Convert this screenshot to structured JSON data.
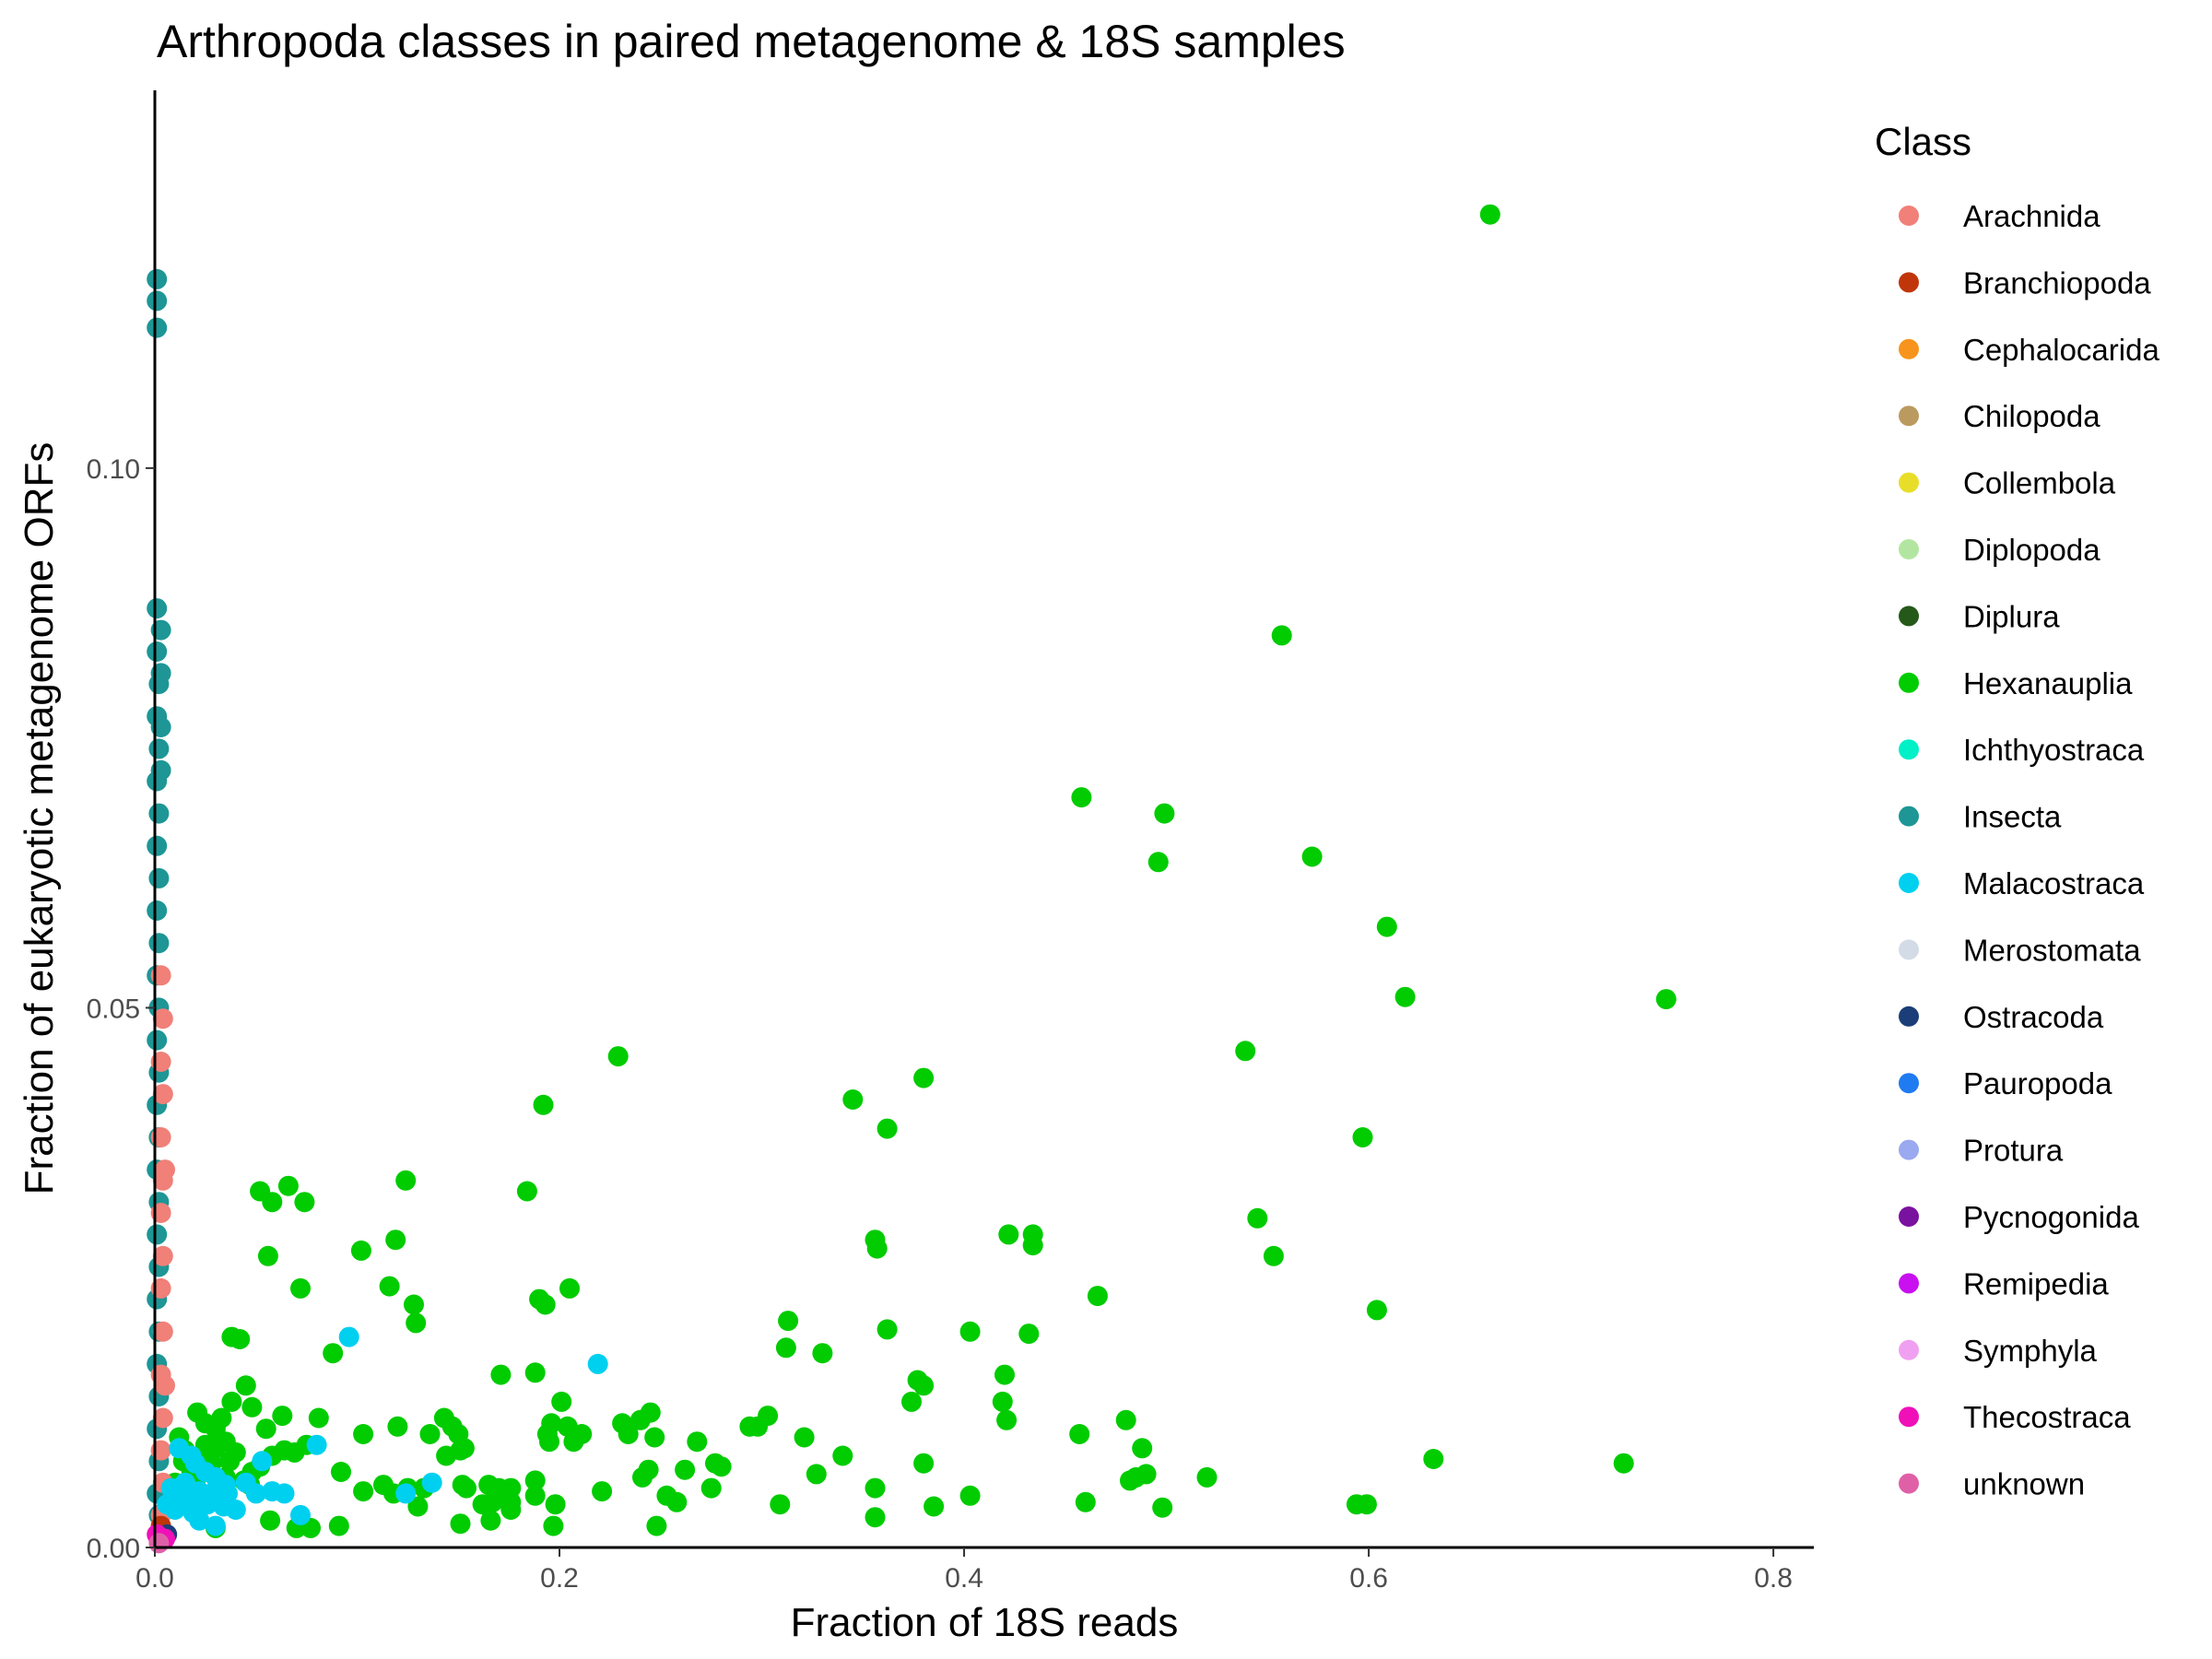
{
  "chart_data": {
    "type": "scatter",
    "title": "Arthropoda classes in paired metagenome & 18S samples",
    "xlabel": "Fraction of 18S reads",
    "ylabel": "Fraction of eukaryotic metagenome ORFs",
    "xlim": [
      0,
      0.82
    ],
    "ylim": [
      0,
      0.135
    ],
    "x_ticks": [
      0,
      0.2,
      0.4,
      0.6,
      0.8
    ],
    "x_tick_labels": [
      "0.0",
      "0.2",
      "0.4",
      "0.6",
      "0.8"
    ],
    "y_ticks": [
      0,
      0.05,
      0.1
    ],
    "y_tick_labels": [
      "0.00",
      "0.05",
      "0.10"
    ],
    "grid": false,
    "legend_placement": "right",
    "legend_title": "Class",
    "series": [
      {
        "name": "Arachnida",
        "color": "#F08078",
        "points": [
          [
            0.003,
            0.053
          ],
          [
            0.004,
            0.049
          ],
          [
            0.003,
            0.045
          ],
          [
            0.004,
            0.042
          ],
          [
            0.003,
            0.038
          ],
          [
            0.004,
            0.034
          ],
          [
            0.003,
            0.031
          ],
          [
            0.004,
            0.027
          ],
          [
            0.003,
            0.024
          ],
          [
            0.004,
            0.02
          ],
          [
            0.003,
            0.016
          ],
          [
            0.004,
            0.012
          ],
          [
            0.003,
            0.009
          ],
          [
            0.004,
            0.006
          ],
          [
            0.003,
            0.003
          ],
          [
            0.005,
            0.015
          ],
          [
            0.005,
            0.035
          ]
        ]
      },
      {
        "name": "Branchiopoda",
        "color": "#C0360A",
        "points": [
          [
            0.002,
            0.001
          ],
          [
            0.003,
            0.002
          ]
        ]
      },
      {
        "name": "Cephalocarida",
        "color": "#F7941D",
        "points": []
      },
      {
        "name": "Chilopoda",
        "color": "#BB9A5F",
        "points": []
      },
      {
        "name": "Collembola",
        "color": "#E8DE2A",
        "points": []
      },
      {
        "name": "Diplopoda",
        "color": "#B2E6A0",
        "points": []
      },
      {
        "name": "Diplura",
        "color": "#25591A",
        "points": []
      },
      {
        "name": "Hexanauplia",
        "color": "#00CC00",
        "points": [
          [
            0.66,
            0.1235
          ],
          [
            0.557,
            0.0845
          ],
          [
            0.458,
            0.0695
          ],
          [
            0.499,
            0.068
          ],
          [
            0.496,
            0.0635
          ],
          [
            0.572,
            0.064
          ],
          [
            0.609,
            0.0575
          ],
          [
            0.618,
            0.051
          ],
          [
            0.747,
            0.0508
          ],
          [
            0.539,
            0.046
          ],
          [
            0.229,
            0.0455
          ],
          [
            0.38,
            0.0435
          ],
          [
            0.345,
            0.0415
          ],
          [
            0.192,
            0.041
          ],
          [
            0.362,
            0.0388
          ],
          [
            0.597,
            0.038
          ],
          [
            0.124,
            0.034
          ],
          [
            0.052,
            0.033
          ],
          [
            0.066,
            0.0335
          ],
          [
            0.184,
            0.033
          ],
          [
            0.058,
            0.032
          ],
          [
            0.074,
            0.032
          ],
          [
            0.545,
            0.0305
          ],
          [
            0.356,
            0.0285
          ],
          [
            0.422,
            0.029
          ],
          [
            0.434,
            0.029
          ],
          [
            0.119,
            0.0285
          ],
          [
            0.357,
            0.0277
          ],
          [
            0.434,
            0.028
          ],
          [
            0.102,
            0.0275
          ],
          [
            0.056,
            0.027
          ],
          [
            0.553,
            0.027
          ],
          [
            0.116,
            0.0242
          ],
          [
            0.072,
            0.024
          ],
          [
            0.205,
            0.024
          ],
          [
            0.466,
            0.0233
          ],
          [
            0.19,
            0.023
          ],
          [
            0.128,
            0.0225
          ],
          [
            0.193,
            0.0225
          ],
          [
            0.604,
            0.022
          ],
          [
            0.313,
            0.021
          ],
          [
            0.129,
            0.0208
          ],
          [
            0.362,
            0.0202
          ],
          [
            0.403,
            0.02
          ],
          [
            0.432,
            0.0198
          ],
          [
            0.038,
            0.0195
          ],
          [
            0.042,
            0.0193
          ],
          [
            0.312,
            0.0185
          ],
          [
            0.33,
            0.018
          ],
          [
            0.088,
            0.018
          ],
          [
            0.171,
            0.016
          ],
          [
            0.188,
            0.0162
          ],
          [
            0.42,
            0.016
          ],
          [
            0.377,
            0.0155
          ],
          [
            0.045,
            0.015
          ],
          [
            0.38,
            0.015
          ],
          [
            0.374,
            0.0135
          ],
          [
            0.419,
            0.0135
          ],
          [
            0.038,
            0.0135
          ],
          [
            0.021,
            0.0125
          ],
          [
            0.231,
            0.0115
          ],
          [
            0.201,
            0.0135
          ],
          [
            0.033,
            0.012
          ],
          [
            0.048,
            0.013
          ],
          [
            0.063,
            0.0122
          ],
          [
            0.081,
            0.012
          ],
          [
            0.143,
            0.012
          ],
          [
            0.303,
            0.0122
          ],
          [
            0.245,
            0.0125
          ],
          [
            0.421,
            0.0118
          ],
          [
            0.48,
            0.0118
          ],
          [
            0.12,
            0.0112
          ],
          [
            0.03,
            0.011
          ],
          [
            0.025,
            0.0115
          ],
          [
            0.055,
            0.011
          ],
          [
            0.147,
            0.0112
          ],
          [
            0.196,
            0.0115
          ],
          [
            0.204,
            0.0112
          ],
          [
            0.24,
            0.0118
          ],
          [
            0.294,
            0.0112
          ],
          [
            0.298,
            0.0112
          ],
          [
            0.103,
            0.0105
          ],
          [
            0.136,
            0.0105
          ],
          [
            0.15,
            0.0105
          ],
          [
            0.194,
            0.0105
          ],
          [
            0.211,
            0.0105
          ],
          [
            0.234,
            0.0105
          ],
          [
            0.247,
            0.0102
          ],
          [
            0.195,
            0.0098
          ],
          [
            0.207,
            0.0098
          ],
          [
            0.321,
            0.0102
          ],
          [
            0.457,
            0.0105
          ],
          [
            0.012,
            0.0102
          ],
          [
            0.268,
            0.0098
          ],
          [
            0.015,
            0.009
          ],
          [
            0.03,
            0.0092
          ],
          [
            0.04,
            0.0088
          ],
          [
            0.064,
            0.009
          ],
          [
            0.075,
            0.0095
          ],
          [
            0.144,
            0.0085
          ],
          [
            0.153,
            0.0092
          ],
          [
            0.151,
            0.009
          ],
          [
            0.022,
            0.0085
          ],
          [
            0.34,
            0.0085
          ],
          [
            0.488,
            0.0092
          ],
          [
            0.632,
            0.0082
          ],
          [
            0.726,
            0.0078
          ],
          [
            0.037,
            0.008
          ],
          [
            0.058,
            0.0085
          ],
          [
            0.069,
            0.0088
          ],
          [
            0.28,
            0.0075
          ],
          [
            0.277,
            0.0078
          ],
          [
            0.262,
            0.0072
          ],
          [
            0.244,
            0.0072
          ],
          [
            0.38,
            0.0078
          ],
          [
            0.327,
            0.0068
          ],
          [
            0.028,
            0.0078
          ],
          [
            0.052,
            0.0075
          ],
          [
            0.018,
            0.0072
          ],
          [
            0.048,
            0.007
          ],
          [
            0.092,
            0.007
          ],
          [
            0.49,
            0.0068
          ],
          [
            0.485,
            0.0065
          ],
          [
            0.52,
            0.0065
          ],
          [
            0.241,
            0.0065
          ],
          [
            0.188,
            0.0062
          ],
          [
            0.482,
            0.0062
          ],
          [
            0.035,
            0.0065
          ],
          [
            0.044,
            0.0062
          ],
          [
            0.047,
            0.0058
          ],
          [
            0.113,
            0.0058
          ],
          [
            0.133,
            0.0055
          ],
          [
            0.154,
            0.0055
          ],
          [
            0.165,
            0.0058
          ],
          [
            0.17,
            0.0055
          ],
          [
            0.176,
            0.0055
          ],
          [
            0.152,
            0.0058
          ],
          [
            0.125,
            0.0055
          ],
          [
            0.103,
            0.0052
          ],
          [
            0.188,
            0.0048
          ],
          [
            0.221,
            0.0052
          ],
          [
            0.253,
            0.0048
          ],
          [
            0.258,
            0.0042
          ],
          [
            0.356,
            0.0055
          ],
          [
            0.275,
            0.0055
          ],
          [
            0.403,
            0.0048
          ],
          [
            0.46,
            0.0042
          ],
          [
            0.594,
            0.004
          ],
          [
            0.599,
            0.004
          ],
          [
            0.498,
            0.0037
          ],
          [
            0.385,
            0.0038
          ],
          [
            0.309,
            0.004
          ],
          [
            0.198,
            0.004
          ],
          [
            0.167,
            0.0042
          ],
          [
            0.162,
            0.004
          ],
          [
            0.176,
            0.0042
          ],
          [
            0.13,
            0.0038
          ],
          [
            0.176,
            0.0035
          ],
          [
            0.118,
            0.005
          ],
          [
            0.057,
            0.0025
          ],
          [
            0.151,
            0.0022
          ],
          [
            0.166,
            0.0025
          ],
          [
            0.197,
            0.002
          ],
          [
            0.248,
            0.002
          ],
          [
            0.356,
            0.0028
          ],
          [
            0.07,
            0.0018
          ],
          [
            0.077,
            0.0018
          ],
          [
            0.091,
            0.002
          ],
          [
            0.03,
            0.0018
          ],
          [
            0.018,
            0.005
          ],
          [
            0.01,
            0.006
          ],
          [
            0.014,
            0.008
          ],
          [
            0.025,
            0.0095
          ],
          [
            0.035,
            0.0098
          ],
          [
            0.02,
            0.006
          ]
        ]
      },
      {
        "name": "Ichthyostraca",
        "color": "#00F0C8",
        "points": []
      },
      {
        "name": "Insecta",
        "color": "#1E9696",
        "points": [
          [
            0.001,
            0.1175
          ],
          [
            0.001,
            0.1155
          ],
          [
            0.001,
            0.113
          ],
          [
            0.001,
            0.087
          ],
          [
            0.001,
            0.083
          ],
          [
            0.002,
            0.08
          ],
          [
            0.001,
            0.077
          ],
          [
            0.002,
            0.074
          ],
          [
            0.001,
            0.071
          ],
          [
            0.002,
            0.068
          ],
          [
            0.001,
            0.065
          ],
          [
            0.002,
            0.062
          ],
          [
            0.001,
            0.059
          ],
          [
            0.002,
            0.056
          ],
          [
            0.001,
            0.053
          ],
          [
            0.002,
            0.05
          ],
          [
            0.001,
            0.047
          ],
          [
            0.002,
            0.044
          ],
          [
            0.001,
            0.041
          ],
          [
            0.002,
            0.038
          ],
          [
            0.001,
            0.035
          ],
          [
            0.002,
            0.032
          ],
          [
            0.001,
            0.029
          ],
          [
            0.002,
            0.026
          ],
          [
            0.001,
            0.023
          ],
          [
            0.002,
            0.02
          ],
          [
            0.001,
            0.017
          ],
          [
            0.002,
            0.014
          ],
          [
            0.001,
            0.011
          ],
          [
            0.002,
            0.008
          ],
          [
            0.001,
            0.005
          ],
          [
            0.002,
            0.003
          ],
          [
            0.003,
            0.085
          ],
          [
            0.003,
            0.081
          ],
          [
            0.003,
            0.076
          ],
          [
            0.003,
            0.072
          ]
        ]
      },
      {
        "name": "Malacostraca",
        "color": "#00D0F0",
        "points": [
          [
            0.096,
            0.0195
          ],
          [
            0.219,
            0.017
          ],
          [
            0.08,
            0.0095
          ],
          [
            0.137,
            0.006
          ],
          [
            0.124,
            0.005
          ],
          [
            0.053,
            0.008
          ],
          [
            0.058,
            0.0052
          ],
          [
            0.064,
            0.005
          ],
          [
            0.072,
            0.003
          ],
          [
            0.012,
            0.0092
          ],
          [
            0.018,
            0.0085
          ],
          [
            0.02,
            0.0078
          ],
          [
            0.025,
            0.007
          ],
          [
            0.03,
            0.0065
          ],
          [
            0.015,
            0.006
          ],
          [
            0.035,
            0.0058
          ],
          [
            0.022,
            0.0052
          ],
          [
            0.028,
            0.005
          ],
          [
            0.012,
            0.0048
          ],
          [
            0.031,
            0.0045
          ],
          [
            0.017,
            0.0042
          ],
          [
            0.026,
            0.004
          ],
          [
            0.034,
            0.0038
          ],
          [
            0.01,
            0.0035
          ],
          [
            0.019,
            0.0032
          ],
          [
            0.04,
            0.0035
          ],
          [
            0.045,
            0.006
          ],
          [
            0.022,
            0.0025
          ],
          [
            0.03,
            0.002
          ],
          [
            0.008,
            0.0055
          ],
          [
            0.006,
            0.004
          ],
          [
            0.05,
            0.005
          ],
          [
            0.036,
            0.005
          ]
        ]
      },
      {
        "name": "Merostomata",
        "color": "#D3DCE6",
        "points": []
      },
      {
        "name": "Ostracoda",
        "color": "#1B3E78",
        "points": [
          [
            0.004,
            0.001
          ],
          [
            0.006,
            0.0012
          ]
        ]
      },
      {
        "name": "Pauropoda",
        "color": "#1F7BF0",
        "points": []
      },
      {
        "name": "Protura",
        "color": "#9AA9F0",
        "points": []
      },
      {
        "name": "Pycnogonida",
        "color": "#7A12A0",
        "points": [
          [
            0.002,
            0.0008
          ]
        ]
      },
      {
        "name": "Remipedia",
        "color": "#C810F0",
        "points": []
      },
      {
        "name": "Symphyla",
        "color": "#F0A0F0",
        "points": []
      },
      {
        "name": "Thecostraca",
        "color": "#F010B8",
        "points": [
          [
            0.003,
            0.0006
          ],
          [
            0.005,
            0.0008
          ],
          [
            0.001,
            0.0012
          ]
        ]
      },
      {
        "name": "unknown",
        "color": "#E060A8",
        "points": [
          [
            0.002,
            0.0004
          ]
        ]
      }
    ]
  }
}
